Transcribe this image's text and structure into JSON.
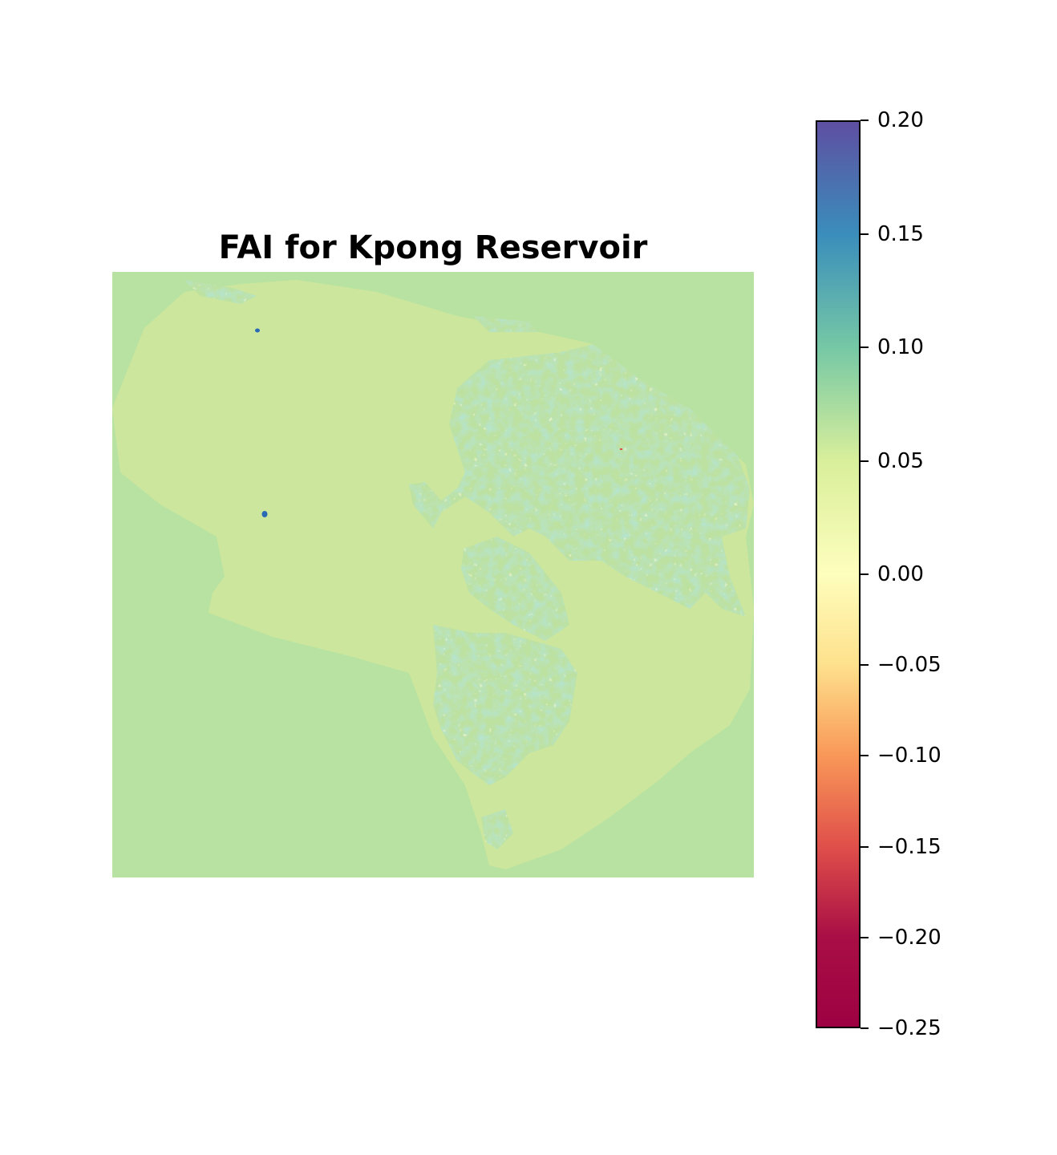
{
  "chart_data": {
    "type": "heatmap",
    "title": "FAI for Kpong Reservoir",
    "xlabel": "",
    "ylabel": "",
    "axes_visible": false,
    "colormap": "Spectral",
    "colorbar": {
      "position": "right",
      "scale": "two-slope (diverging, centered at 0.00)",
      "vmin": -0.25,
      "vcenter": 0.0,
      "vmax": 0.2,
      "ticks": [
        {
          "value": 0.2,
          "label": "0.20"
        },
        {
          "value": 0.15,
          "label": "0.15"
        },
        {
          "value": 0.1,
          "label": "0.10"
        },
        {
          "value": 0.05,
          "label": "0.05"
        },
        {
          "value": 0.0,
          "label": "0.00"
        },
        {
          "value": -0.05,
          "label": "−0.05"
        },
        {
          "value": -0.1,
          "label": "−0.10"
        },
        {
          "value": -0.15,
          "label": "−0.15"
        },
        {
          "value": -0.2,
          "label": "−0.20"
        },
        {
          "value": -0.25,
          "label": "−0.25"
        }
      ],
      "stops": [
        {
          "value": -0.25,
          "color": "#9e0142"
        },
        {
          "value": -0.2,
          "color": "#a90f45"
        },
        {
          "value": -0.15,
          "color": "#e0504a"
        },
        {
          "value": -0.1,
          "color": "#f99858"
        },
        {
          "value": -0.05,
          "color": "#fee18c"
        },
        {
          "value": 0.0,
          "color": "#fefebd"
        },
        {
          "value": 0.05,
          "color": "#d9ef9b"
        },
        {
          "value": 0.1,
          "color": "#76c8a5"
        },
        {
          "value": 0.15,
          "color": "#3a8ebb"
        },
        {
          "value": 0.2,
          "color": "#5e4fa2"
        }
      ]
    },
    "field": {
      "background_value": 0.064,
      "reservoir_value": 0.045,
      "vegetated_patch_range": [
        0.0,
        0.12
      ],
      "extreme_points": [
        {
          "value": 0.16,
          "label": "isolated high pixel (upper-left)"
        },
        {
          "value": 0.17,
          "label": "isolated high pixel (mid-left)"
        },
        {
          "value": -0.2,
          "label": "isolated low pixel (right-center)"
        }
      ]
    }
  }
}
